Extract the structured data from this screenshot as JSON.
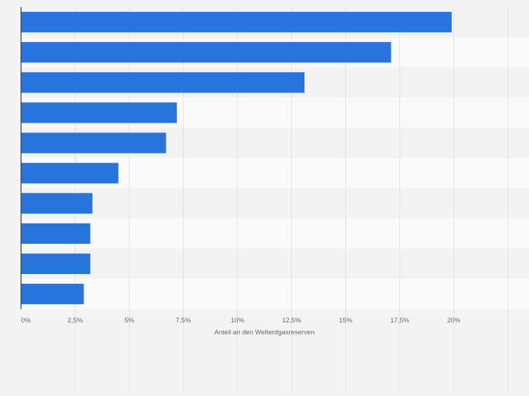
{
  "chart_data": {
    "type": "bar",
    "orientation": "horizontal",
    "categories": [
      "",
      "",
      "",
      "",
      "",
      "",
      "",
      "",
      "",
      ""
    ],
    "values": [
      19.9,
      17.1,
      13.1,
      7.2,
      6.7,
      4.5,
      3.3,
      3.2,
      3.2,
      2.9
    ],
    "unit": "%",
    "xlabel": "Anteil an den Welterdgasreserven",
    "ylabel": "",
    "xlim": [
      0,
      22.5
    ],
    "x_ticks": [
      0,
      2.5,
      5,
      7.5,
      10,
      12.5,
      15,
      17.5,
      20
    ],
    "x_tick_labels": [
      "0%",
      "2,5%",
      "5%",
      "7,5%",
      "10%",
      "12,5%",
      "15%",
      "17,5%",
      "20%"
    ],
    "grid": true,
    "bar_color": "#2876dd",
    "band_colors": [
      "#f3f3f3",
      "#fafafa"
    ]
  }
}
